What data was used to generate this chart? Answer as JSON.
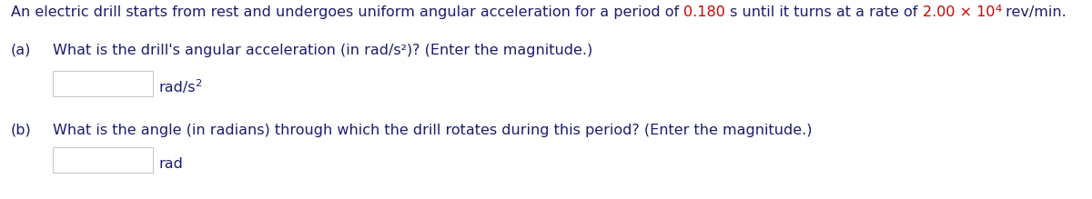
{
  "background_color": "#ffffff",
  "text_color": "#1c1c6e",
  "red_color": "#cc0000",
  "font_size": 11.5,
  "intro_parts": [
    {
      "text": "An electric drill starts from rest and undergoes uniform angular acceleration for a period of ",
      "color": "#1c1c6e",
      "sup": false
    },
    {
      "text": "0.180",
      "color": "#cc0000",
      "sup": false
    },
    {
      "text": " s until it turns at a rate of ",
      "color": "#1c1c6e",
      "sup": false
    },
    {
      "text": "2.00 × 10",
      "color": "#cc0000",
      "sup": false
    },
    {
      "text": "4",
      "color": "#cc0000",
      "sup": true
    },
    {
      "text": " rev/min.",
      "color": "#1c1c6e",
      "sup": false
    }
  ],
  "part_a_label": "(a)",
  "part_a_question": "What is the drill's angular acceleration (in rad/s²)? (Enter the magnitude.)",
  "part_a_unit_base": "rad/s",
  "part_a_unit_sup": "2",
  "part_b_label": "(b)",
  "part_b_question": "What is the angle (in radians) through which the drill rotates during this period? (Enter the magnitude.)",
  "part_b_unit": "rad",
  "box_color": "#c8c8c8",
  "box_fill": "#ffffff"
}
